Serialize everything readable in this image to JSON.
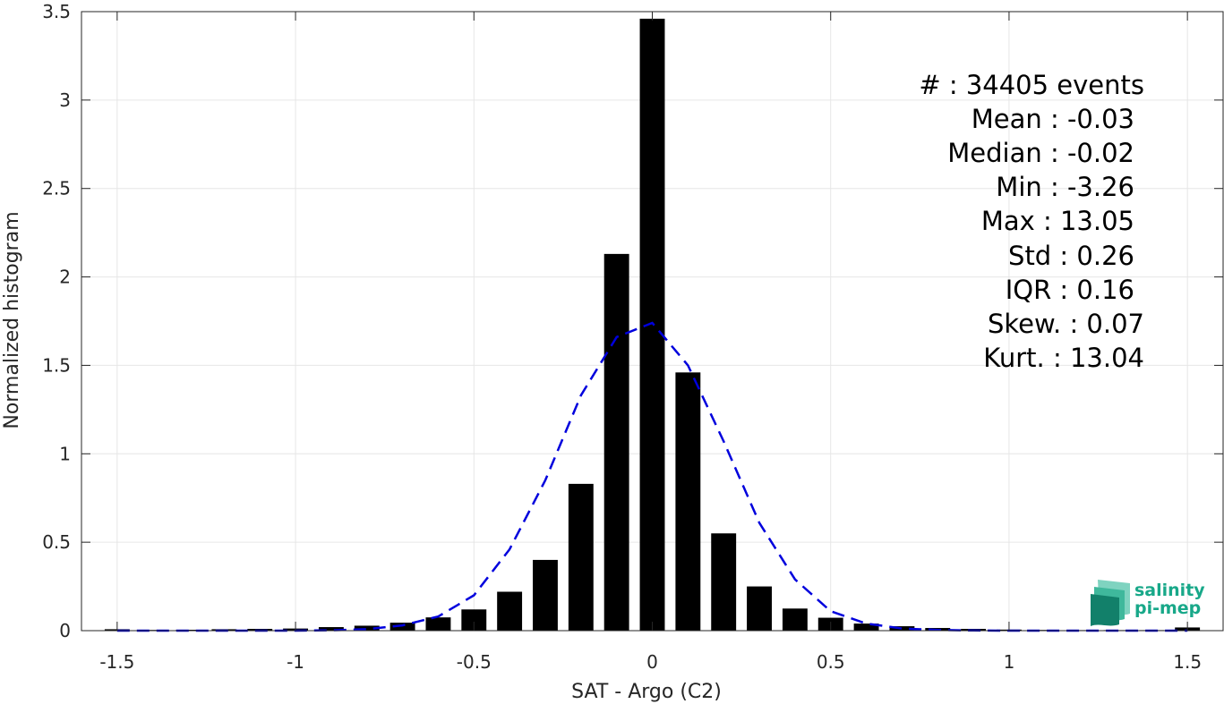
{
  "chart_data": {
    "type": "bar",
    "xlabel": "SAT - Argo (C2)",
    "ylabel": "Normalized histogram",
    "xlim": [
      -1.6,
      1.6
    ],
    "ylim": [
      0,
      3.5
    ],
    "xticks": [
      -1.5,
      -1,
      -0.5,
      0,
      0.5,
      1,
      1.5
    ],
    "xtick_labels": [
      "-1.5",
      "-1",
      "-0.5",
      "0",
      "0.5",
      "1",
      "1.5"
    ],
    "yticks": [
      0,
      0.5,
      1,
      1.5,
      2,
      2.5,
      3,
      3.5
    ],
    "ytick_labels": [
      "0",
      "0.5",
      "1",
      "1.5",
      "2",
      "2.5",
      "3",
      "3.5"
    ],
    "grid": true,
    "bar_width": 0.07,
    "series": [
      {
        "kind": "histogram",
        "color": "#000000",
        "x": [
          -1.5,
          -1.4,
          -1.3,
          -1.2,
          -1.1,
          -1.0,
          -0.9,
          -0.8,
          -0.7,
          -0.6,
          -0.5,
          -0.4,
          -0.3,
          -0.2,
          -0.1,
          0.0,
          0.1,
          0.2,
          0.3,
          0.4,
          0.5,
          0.6,
          0.7,
          0.8,
          0.9,
          1.0,
          1.1,
          1.2,
          1.3,
          1.4,
          1.5
        ],
        "values": [
          0.008,
          0.004,
          0.005,
          0.008,
          0.01,
          0.012,
          0.02,
          0.028,
          0.045,
          0.075,
          0.12,
          0.22,
          0.4,
          0.83,
          2.13,
          3.46,
          1.46,
          0.55,
          0.25,
          0.125,
          0.073,
          0.04,
          0.025,
          0.015,
          0.01,
          0.006,
          0.004,
          0.003,
          0.003,
          0.003,
          0.018
        ]
      },
      {
        "kind": "fit-line",
        "color": "#0000dd",
        "dashed": true,
        "x": [
          -1.5,
          -1.4,
          -1.3,
          -1.2,
          -1.1,
          -1.0,
          -0.9,
          -0.8,
          -0.7,
          -0.6,
          -0.5,
          -0.4,
          -0.3,
          -0.2,
          -0.1,
          0.0,
          0.1,
          0.2,
          0.3,
          0.4,
          0.5,
          0.6,
          0.7,
          0.8,
          0.9,
          1.0,
          1.1,
          1.2,
          1.3,
          1.4,
          1.5
        ],
        "values": [
          0.0,
          0.0,
          0.0,
          0.0,
          0.0,
          0.0,
          0.002,
          0.008,
          0.03,
          0.08,
          0.2,
          0.46,
          0.85,
          1.33,
          1.66,
          1.74,
          1.5,
          1.07,
          0.61,
          0.29,
          0.11,
          0.04,
          0.012,
          0.004,
          0.001,
          0.0,
          0.0,
          0.0,
          0.0,
          0.0,
          0.0
        ]
      }
    ],
    "annotations": {
      "count": "#  : 34405 events",
      "mean": "Mean : -0.03",
      "median": "Median : -0.02",
      "min": "Min : -3.26",
      "max": "Max : 13.05",
      "std": "Std : 0.26",
      "iqr": "IQR : 0.16",
      "skew": "Skew. : 0.07",
      "kurt": "Kurt. : 13.04"
    }
  },
  "logo": {
    "line1": "salinity",
    "line2": "pi-mep",
    "color": "#18a889"
  }
}
